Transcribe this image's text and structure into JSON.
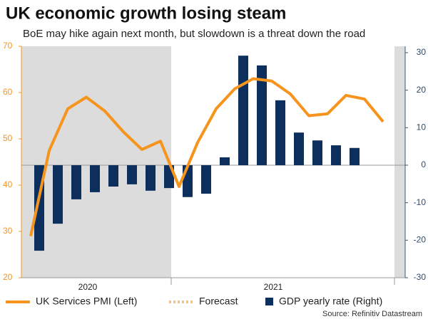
{
  "chart_data": {
    "type": "combo",
    "title": "UK economic growth losing steam",
    "subtitle": "BoE may hike again next month, but slowdown is a threat down the road",
    "source": "Source: Refinitiv Datastream",
    "categories": [
      null,
      null,
      null,
      "2020",
      null,
      null,
      null,
      null,
      null,
      null,
      null,
      null,
      null,
      "2021",
      null,
      null,
      null,
      null,
      null,
      null
    ],
    "series": [
      {
        "name": "UK Services PMI (Left)",
        "kind": "line",
        "axis": "y",
        "color": "#f7941d",
        "values": [
          29,
          47.5,
          56.5,
          59,
          56,
          51.5,
          47.7,
          49.5,
          39.7,
          49.2,
          56.5,
          60.8,
          63,
          62.5,
          59.7,
          55,
          55.4,
          59.4,
          58.6,
          53.7
        ]
      },
      {
        "name": "Forecast",
        "kind": "dotted",
        "axis": "y",
        "color": "#f9c27a",
        "values": [
          null,
          null,
          null,
          null,
          null,
          null,
          null,
          null,
          null,
          null,
          null,
          null,
          null,
          null,
          null,
          null,
          null,
          null,
          null,
          null
        ]
      },
      {
        "name": "GDP yearly rate (Right)",
        "kind": "bar",
        "axis": "y2",
        "color": "#0c2f5e",
        "values": [
          -22.8,
          -15.6,
          -9.1,
          -7.2,
          -5.7,
          -5.1,
          -6.8,
          -6.1,
          -8.5,
          -7.6,
          2.1,
          29.2,
          26.6,
          17.3,
          8.7,
          6.6,
          5.3,
          4.6,
          null,
          null
        ]
      }
    ],
    "ylim": [
      20,
      70
    ],
    "yticks": [
      20,
      30,
      40,
      50,
      60,
      70
    ],
    "y2lim": [
      -30,
      31.7
    ],
    "y2ticks": [
      -30,
      -20,
      -10,
      0,
      10,
      20,
      30
    ]
  }
}
